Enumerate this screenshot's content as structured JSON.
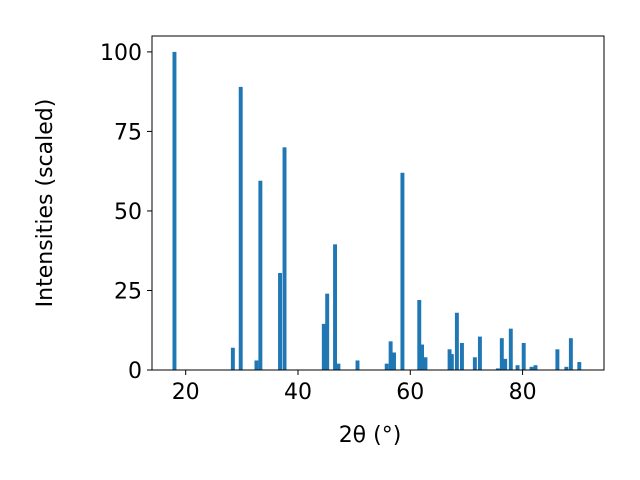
{
  "chart_data": {
    "type": "bar",
    "title": "",
    "xlabel": "2θ (°)",
    "ylabel": "Intensities (scaled)",
    "xlim": [
      14,
      94.5
    ],
    "ylim": [
      0,
      105
    ],
    "xticks": [
      20,
      40,
      60,
      80
    ],
    "yticks": [
      0,
      25,
      50,
      75,
      100
    ],
    "bar_color": "#1f77b4",
    "bar_width_deg": 0.7,
    "grid": false,
    "legend": "none",
    "series": [
      {
        "x": [
          18.0,
          28.4,
          29.8,
          32.6,
          33.3,
          36.8,
          37.6,
          44.6,
          45.2,
          46.6,
          47.2,
          50.6,
          55.8,
          56.5,
          57.1,
          58.6,
          61.6,
          62.1,
          62.7,
          67.0,
          67.4,
          68.3,
          69.2,
          71.5,
          72.4,
          75.6,
          76.3,
          76.9,
          77.9,
          79.1,
          80.2,
          81.6,
          82.3,
          86.2,
          87.8,
          88.6,
          90.1
        ],
        "values": [
          100,
          7,
          89,
          3,
          59.5,
          30.5,
          70,
          14.5,
          24,
          39.5,
          2,
          3,
          2,
          9,
          5.5,
          62,
          22,
          8,
          4,
          6.5,
          5,
          18,
          8.5,
          4,
          10.5,
          0.5,
          10,
          3.5,
          13,
          1.5,
          8.5,
          1,
          1.5,
          6.5,
          1,
          10,
          2.5
        ]
      }
    ]
  }
}
